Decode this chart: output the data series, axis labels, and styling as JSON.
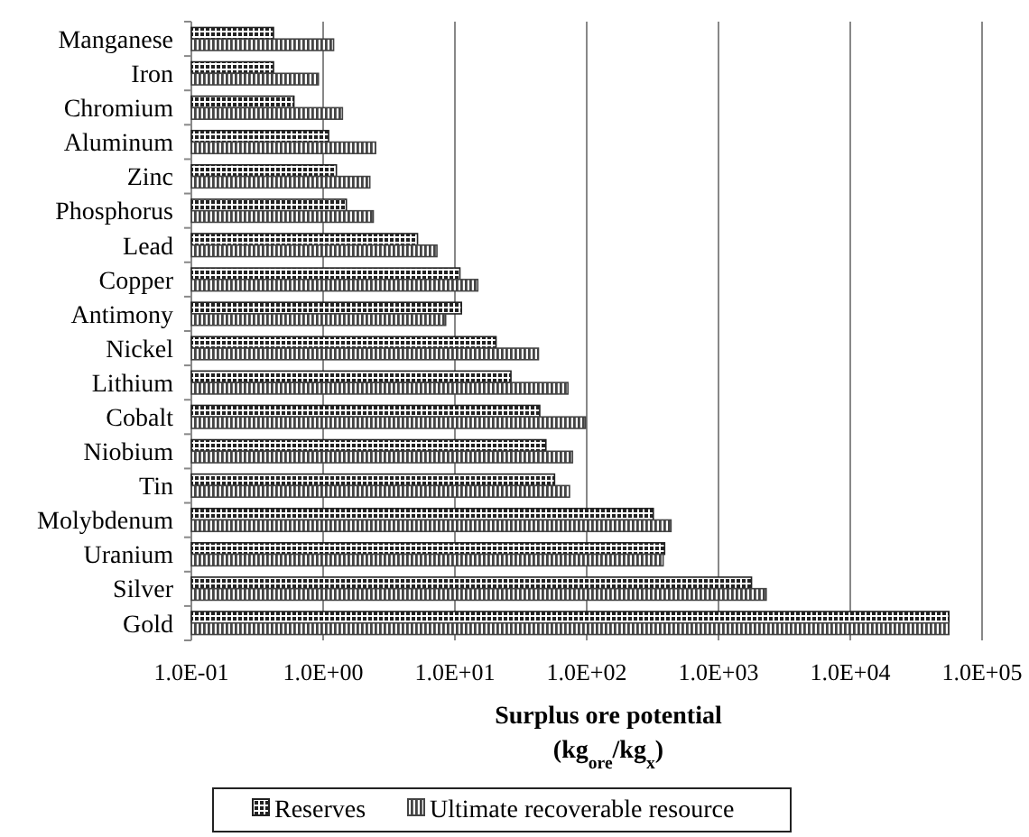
{
  "chart_data": {
    "type": "bar",
    "orientation": "horizontal",
    "log": "x",
    "categories": [
      "Manganese",
      "Iron",
      "Chromium",
      "Aluminum",
      "Zinc",
      "Phosphorus",
      "Lead",
      "Copper",
      "Antimony",
      "Nickel",
      "Lithium",
      "Cobalt",
      "Niobium",
      "Tin",
      "Molybdenum",
      "Uranium",
      "Silver",
      "Gold"
    ],
    "series": [
      {
        "name": "Reserves",
        "color": "#222222",
        "values": [
          0.42,
          0.42,
          0.6,
          1.1,
          1.26,
          1.5,
          5.2,
          10.9,
          11.2,
          20.5,
          26.6,
          44,
          49,
          57,
          320,
          390,
          1780,
          56000
        ]
      },
      {
        "name": "Ultimate recoverable resource",
        "color": "#444444",
        "values": [
          1.2,
          0.92,
          1.4,
          2.5,
          2.26,
          2.4,
          7.3,
          14.9,
          8.5,
          43,
          72,
          98,
          78,
          74,
          436,
          380,
          2300,
          56000
        ]
      }
    ],
    "xlim": [
      0.1,
      100000
    ],
    "xticks": [
      {
        "value": 0.1,
        "label": "1.0E-01"
      },
      {
        "value": 1,
        "label": "1.0E+00"
      },
      {
        "value": 10,
        "label": "1.0E+01"
      },
      {
        "value": 100,
        "label": "1.0E+02"
      },
      {
        "value": 1000,
        "label": "1.0E+03"
      },
      {
        "value": 10000,
        "label": "1.0E+04"
      },
      {
        "value": 100000,
        "label": "1.0E+05"
      }
    ],
    "xlabel": "Surplus ore potential\n(kg$_{ore}$/kg$_{x}$)",
    "grid": "x",
    "legend": "bottom"
  }
}
